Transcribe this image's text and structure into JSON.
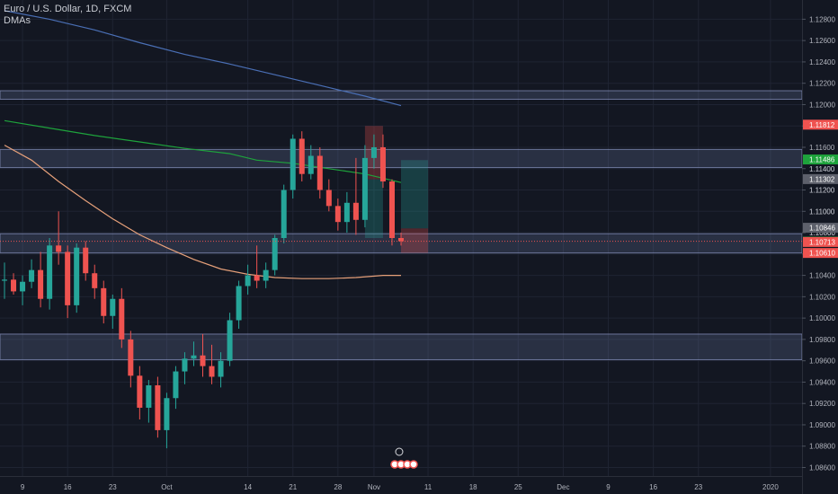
{
  "legend": {
    "symbol": "Euro / U.S. Dollar, 1D, FXCM",
    "indicator": "DMAs"
  },
  "colors": {
    "background": "#131722",
    "grid": "#1f2433",
    "up": "#26a69a",
    "down": "#ef5350",
    "ma_blue": "#4a6fb5",
    "ma_green": "#1ea33c",
    "ma_orange": "#e6a07a",
    "zone": "#6b7aa8"
  },
  "chart_data": {
    "type": "candlestick",
    "title": "Euro / U.S. Dollar, 1D, FXCM",
    "y_axis_labels": [
      "1.12800",
      "1.12600",
      "1.12400",
      "1.12200",
      "1.12000",
      "1.11800",
      "1.11600",
      "1.11400",
      "1.11200",
      "1.11000",
      "1.10800",
      "1.10600",
      "1.10400",
      "1.10200",
      "1.10000",
      "1.09800",
      "1.09600",
      "1.09400",
      "1.09200",
      "1.09000",
      "1.08800",
      "1.08600"
    ],
    "y_ticks": [
      1.128,
      1.126,
      1.124,
      1.122,
      1.12,
      1.118,
      1.116,
      1.114,
      1.112,
      1.11,
      1.108,
      1.106,
      1.104,
      1.102,
      1.1,
      1.098,
      1.096,
      1.094,
      1.092,
      1.09,
      1.088,
      1.086
    ],
    "ylim": [
      1.0852,
      1.1298
    ],
    "x_axis_labels": [
      {
        "label": "9",
        "index": 2
      },
      {
        "label": "16",
        "index": 7
      },
      {
        "label": "23",
        "index": 12
      },
      {
        "label": "Oct",
        "index": 18
      },
      {
        "label": "14",
        "index": 27
      },
      {
        "label": "21",
        "index": 32
      },
      {
        "label": "28",
        "index": 37
      },
      {
        "label": "Nov",
        "index": 41
      },
      {
        "label": "11",
        "index": 47
      },
      {
        "label": "18",
        "index": 52
      },
      {
        "label": "25",
        "index": 57
      },
      {
        "label": "Dec",
        "index": 62
      },
      {
        "label": "9",
        "index": 67
      },
      {
        "label": "16",
        "index": 72
      },
      {
        "label": "23",
        "index": 77
      },
      {
        "label": "2020",
        "index": 85
      }
    ],
    "index_range": [
      -0.5,
      88.5
    ],
    "candles": [
      [
        1.1035,
        1.1052,
        1.1018,
        1.1036
      ],
      [
        1.1036,
        1.1042,
        1.1022,
        1.1025
      ],
      [
        1.1025,
        1.104,
        1.1012,
        1.1034
      ],
      [
        1.1034,
        1.1055,
        1.1028,
        1.1045
      ],
      [
        1.1045,
        1.1062,
        1.101,
        1.1018
      ],
      [
        1.1018,
        1.1075,
        1.1008,
        1.1068
      ],
      [
        1.1068,
        1.11,
        1.105,
        1.1062
      ],
      [
        1.1062,
        1.1068,
        1.1,
        1.1012
      ],
      [
        1.1012,
        1.107,
        1.1005,
        1.1066
      ],
      [
        1.1066,
        1.1072,
        1.1035,
        1.1042
      ],
      [
        1.1042,
        1.105,
        1.1018,
        1.1028
      ],
      [
        1.1028,
        1.1035,
        1.0995,
        1.1002
      ],
      [
        1.1002,
        1.1022,
        1.099,
        1.1018
      ],
      [
        1.1018,
        1.1028,
        1.0972,
        1.098
      ],
      [
        1.098,
        1.0988,
        1.0935,
        1.0946
      ],
      [
        1.0946,
        1.0955,
        1.0905,
        1.0916
      ],
      [
        1.0916,
        1.0942,
        1.0902,
        1.0937
      ],
      [
        1.0937,
        1.0945,
        1.0888,
        1.0895
      ],
      [
        1.0895,
        1.093,
        1.0878,
        1.0925
      ],
      [
        1.0925,
        1.0955,
        1.0915,
        1.095
      ],
      [
        1.095,
        1.0968,
        1.0938,
        1.0962
      ],
      [
        1.0962,
        1.0978,
        1.0955,
        1.0965
      ],
      [
        1.0965,
        1.0985,
        1.0945,
        1.0955
      ],
      [
        1.0955,
        1.0975,
        1.0938,
        1.0945
      ],
      [
        1.0945,
        1.0968,
        1.0935,
        1.096
      ],
      [
        1.096,
        1.1005,
        1.0955,
        1.0998
      ],
      [
        1.0998,
        1.1035,
        1.099,
        1.103
      ],
      [
        1.103,
        1.105,
        1.1022,
        1.104
      ],
      [
        1.104,
        1.1068,
        1.1028,
        1.1035
      ],
      [
        1.1035,
        1.1052,
        1.1028,
        1.1045
      ],
      [
        1.1045,
        1.1078,
        1.104,
        1.1075
      ],
      [
        1.1075,
        1.1125,
        1.107,
        1.112
      ],
      [
        1.112,
        1.1172,
        1.1112,
        1.1168
      ],
      [
        1.1168,
        1.1175,
        1.1128,
        1.1135
      ],
      [
        1.1135,
        1.1162,
        1.113,
        1.1152
      ],
      [
        1.1152,
        1.116,
        1.1112,
        1.112
      ],
      [
        1.112,
        1.113,
        1.11,
        1.1105
      ],
      [
        1.1105,
        1.1112,
        1.1082,
        1.109
      ],
      [
        1.109,
        1.1118,
        1.108,
        1.1108
      ],
      [
        1.1108,
        1.115,
        1.1078,
        1.1092
      ],
      [
        1.1092,
        1.1162,
        1.1085,
        1.115
      ],
      [
        1.115,
        1.1172,
        1.114,
        1.116
      ],
      [
        1.116,
        1.1172,
        1.1122,
        1.1128
      ],
      [
        1.1128,
        1.113,
        1.1068,
        1.1075
      ],
      [
        1.1075,
        1.108,
        1.1068,
        1.1072
      ]
    ],
    "moving_averages": [
      {
        "name": "MA blue",
        "color": "#4a6fb5",
        "points": [
          [
            0,
            1.1288
          ],
          [
            5,
            1.128
          ],
          [
            10,
            1.127
          ],
          [
            15,
            1.1258
          ],
          [
            20,
            1.1247
          ],
          [
            25,
            1.1238
          ],
          [
            30,
            1.1228
          ],
          [
            35,
            1.1218
          ],
          [
            40,
            1.1208
          ],
          [
            44,
            1.1199
          ]
        ]
      },
      {
        "name": "MA green",
        "color": "#1ea33c",
        "points": [
          [
            0,
            1.1185
          ],
          [
            5,
            1.1178
          ],
          [
            10,
            1.1171
          ],
          [
            15,
            1.1165
          ],
          [
            20,
            1.1159
          ],
          [
            25,
            1.1154
          ],
          [
            28,
            1.1148
          ],
          [
            32,
            1.1145
          ],
          [
            36,
            1.114
          ],
          [
            40,
            1.1135
          ],
          [
            44,
            1.1127
          ]
        ]
      },
      {
        "name": "MA orange",
        "color": "#e6a07a",
        "points": [
          [
            0,
            1.1162
          ],
          [
            3,
            1.1148
          ],
          [
            6,
            1.1128
          ],
          [
            9,
            1.111
          ],
          [
            12,
            1.1093
          ],
          [
            15,
            1.1078
          ],
          [
            18,
            1.1066
          ],
          [
            21,
            1.1055
          ],
          [
            24,
            1.1046
          ],
          [
            27,
            1.1041
          ],
          [
            30,
            1.1038
          ],
          [
            33,
            1.1037
          ],
          [
            36,
            1.1037
          ],
          [
            39,
            1.1038
          ],
          [
            42,
            1.104
          ],
          [
            44,
            1.104
          ]
        ]
      }
    ],
    "zones": [
      [
        1.1205,
        1.1213
      ],
      [
        1.1141,
        1.1158
      ],
      [
        1.1061,
        1.1079
      ],
      [
        1.0961,
        1.0985
      ]
    ],
    "position_boxes": [
      {
        "type": "stop",
        "color": "#ef5350",
        "from": 40,
        "to": 42,
        "y1": 1.113,
        "y2": 1.118
      },
      {
        "type": "target",
        "color": "#26a69a",
        "from": 40,
        "to": 42,
        "y1": 1.1075,
        "y2": 1.113
      },
      {
        "type": "target",
        "color": "#26a69a",
        "from": 44,
        "to": 47,
        "y1": 1.1084,
        "y2": 1.1148
      },
      {
        "type": "stop",
        "color": "#ef5350",
        "from": 44,
        "to": 47,
        "y1": 1.1061,
        "y2": 1.1084
      }
    ],
    "price_tags": [
      {
        "label": "1.11812",
        "value": 1.11812,
        "color": "#ef5350"
      },
      {
        "label": "1.11486",
        "value": 1.11486,
        "color": "#1ea33c"
      },
      {
        "label": "1.11302",
        "value": 1.11302,
        "color": "#5d606b"
      },
      {
        "label": "1.10846",
        "value": 1.10846,
        "color": "#5d606b"
      },
      {
        "label": "1.10716",
        "value": 1.10716,
        "color": "#1ea33c"
      },
      {
        "label": "1.10713",
        "value": 1.10713,
        "color": "#ef5350"
      },
      {
        "label": "1.10610",
        "value": 1.1061,
        "color": "#ef5350"
      }
    ],
    "plain_labels": [
      "1.11400",
      "1.11200",
      "1.11000",
      "1.10800"
    ]
  }
}
